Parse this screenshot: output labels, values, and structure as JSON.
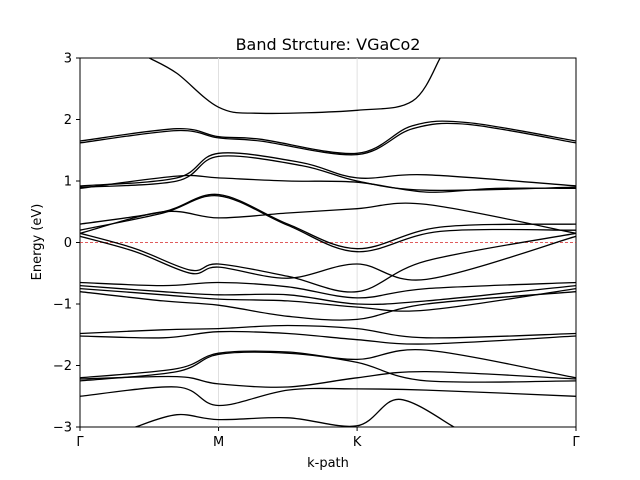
{
  "chart_data": {
    "type": "line",
    "title": "Band Strcture: VGaCo2",
    "xlabel": "k-path",
    "ylabel": "Energy (eV)",
    "x_ticks": [
      "Γ",
      "M",
      "K",
      "Γ"
    ],
    "x_tick_positions": [
      0,
      1,
      2,
      3.58
    ],
    "xlim": [
      0,
      3.58
    ],
    "ylim": [
      -3,
      3
    ],
    "y_ticks": [
      -3,
      -2,
      -1,
      0,
      1,
      2,
      3
    ],
    "grid": "vertical lines at high-symmetry points",
    "fermi_level": {
      "energy": 0,
      "color": "#d62728",
      "style": "dashed"
    },
    "line_color": "#000000",
    "series": [
      {
        "x": [
          0.5,
          0.7,
          1.0,
          1.3,
          2.0,
          2.4,
          2.6
        ],
        "values": [
          3.0,
          2.75,
          2.2,
          2.1,
          2.15,
          2.3,
          3.0
        ]
      },
      {
        "x": [
          0,
          0.7,
          1.0,
          1.3,
          2.0,
          2.4,
          2.8,
          3.58
        ],
        "values": [
          1.65,
          1.85,
          1.72,
          1.68,
          1.45,
          1.9,
          1.95,
          1.65
        ]
      },
      {
        "x": [
          0,
          0.7,
          1.0,
          1.3,
          2.0,
          2.4,
          2.8,
          3.58
        ],
        "values": [
          1.62,
          1.82,
          1.7,
          1.65,
          1.43,
          1.85,
          1.92,
          1.62
        ]
      },
      {
        "x": [
          0,
          0.7,
          1.0,
          1.6,
          2.0,
          2.5,
          3.58
        ],
        "values": [
          0.92,
          1.05,
          1.45,
          1.3,
          1.05,
          1.1,
          0.92
        ]
      },
      {
        "x": [
          0,
          0.7,
          1.0,
          1.6,
          2.0,
          2.5,
          3.58
        ],
        "values": [
          0.9,
          1.0,
          1.4,
          1.25,
          1.0,
          0.85,
          0.9
        ]
      },
      {
        "x": [
          0,
          0.7,
          1.0,
          1.5,
          2.0,
          2.5,
          3.0,
          3.58
        ],
        "values": [
          0.88,
          1.08,
          1.05,
          1.0,
          0.98,
          0.82,
          0.88,
          0.88
        ]
      },
      {
        "x": [
          0,
          0.6,
          1.0,
          1.5,
          2.0,
          2.6,
          3.58
        ],
        "values": [
          0.3,
          0.5,
          0.78,
          0.3,
          -0.1,
          0.25,
          0.3
        ]
      },
      {
        "x": [
          0,
          0.6,
          1.0,
          1.5,
          2.0,
          2.6,
          3.58
        ],
        "values": [
          0.2,
          0.48,
          0.76,
          0.28,
          -0.15,
          0.18,
          0.2
        ]
      },
      {
        "x": [
          0,
          0.6,
          1.0,
          1.5,
          2.0,
          2.5,
          3.58
        ],
        "values": [
          0.15,
          0.5,
          0.4,
          0.48,
          0.55,
          0.62,
          0.15
        ]
      },
      {
        "x": [
          0,
          0.4,
          0.8,
          1.0,
          1.5,
          2.0,
          2.5,
          3.58
        ],
        "values": [
          0.15,
          -0.1,
          -0.45,
          -0.35,
          -0.55,
          -0.8,
          -0.3,
          0.15
        ]
      },
      {
        "x": [
          0,
          0.4,
          0.8,
          1.0,
          1.5,
          2.0,
          2.5,
          3.58
        ],
        "values": [
          0.1,
          -0.15,
          -0.5,
          -0.4,
          -0.58,
          -0.35,
          -0.6,
          0.1
        ]
      },
      {
        "x": [
          0,
          0.6,
          1.0,
          1.5,
          2.0,
          2.5,
          3.58
        ],
        "values": [
          -0.65,
          -0.7,
          -0.65,
          -0.72,
          -0.9,
          -0.75,
          -0.65
        ]
      },
      {
        "x": [
          0,
          0.6,
          1.0,
          1.5,
          2.0,
          2.5,
          3.58
        ],
        "values": [
          -0.7,
          -0.8,
          -0.85,
          -0.85,
          -1.0,
          -0.95,
          -0.7
        ]
      },
      {
        "x": [
          0,
          0.6,
          1.0,
          1.5,
          2.0,
          2.5,
          3.58
        ],
        "values": [
          -0.75,
          -0.85,
          -0.92,
          -0.95,
          -1.05,
          -1.1,
          -0.75
        ]
      },
      {
        "x": [
          0,
          0.6,
          1.0,
          1.5,
          2.0,
          2.5,
          3.58
        ],
        "values": [
          -0.8,
          -0.95,
          -1.02,
          -1.2,
          -1.25,
          -1.0,
          -0.8
        ]
      },
      {
        "x": [
          0,
          0.6,
          1.0,
          1.5,
          2.0,
          2.5,
          3.58
        ],
        "values": [
          -1.48,
          -1.42,
          -1.4,
          -1.35,
          -1.4,
          -1.55,
          -1.48
        ]
      },
      {
        "x": [
          0,
          0.6,
          1.0,
          1.5,
          2.0,
          2.5,
          3.58
        ],
        "values": [
          -1.52,
          -1.55,
          -1.45,
          -1.48,
          -1.58,
          -1.65,
          -1.52
        ]
      },
      {
        "x": [
          0,
          0.7,
          1.0,
          1.5,
          2.0,
          2.5,
          3.58
        ],
        "values": [
          -2.2,
          -2.05,
          -1.8,
          -1.78,
          -1.9,
          -1.75,
          -2.2
        ]
      },
      {
        "x": [
          0,
          0.7,
          1.0,
          1.5,
          2.0,
          2.5,
          3.58
        ],
        "values": [
          -2.25,
          -2.1,
          -1.82,
          -1.8,
          -1.95,
          -2.25,
          -2.25
        ]
      },
      {
        "x": [
          0,
          0.7,
          1.0,
          1.5,
          2.0,
          2.5,
          3.58
        ],
        "values": [
          -2.22,
          -2.18,
          -2.3,
          -2.35,
          -2.2,
          -2.1,
          -2.22
        ]
      },
      {
        "x": [
          0,
          0.7,
          1.0,
          1.5,
          2.0,
          2.5,
          3.58
        ],
        "values": [
          -2.5,
          -2.35,
          -2.65,
          -2.4,
          -2.38,
          -2.4,
          -2.5
        ]
      },
      {
        "x": [
          0.4,
          0.7,
          1.0,
          1.5,
          2.0,
          2.3,
          2.7
        ],
        "values": [
          -3.0,
          -2.8,
          -2.88,
          -2.85,
          -2.98,
          -2.55,
          -3.0
        ]
      }
    ]
  }
}
